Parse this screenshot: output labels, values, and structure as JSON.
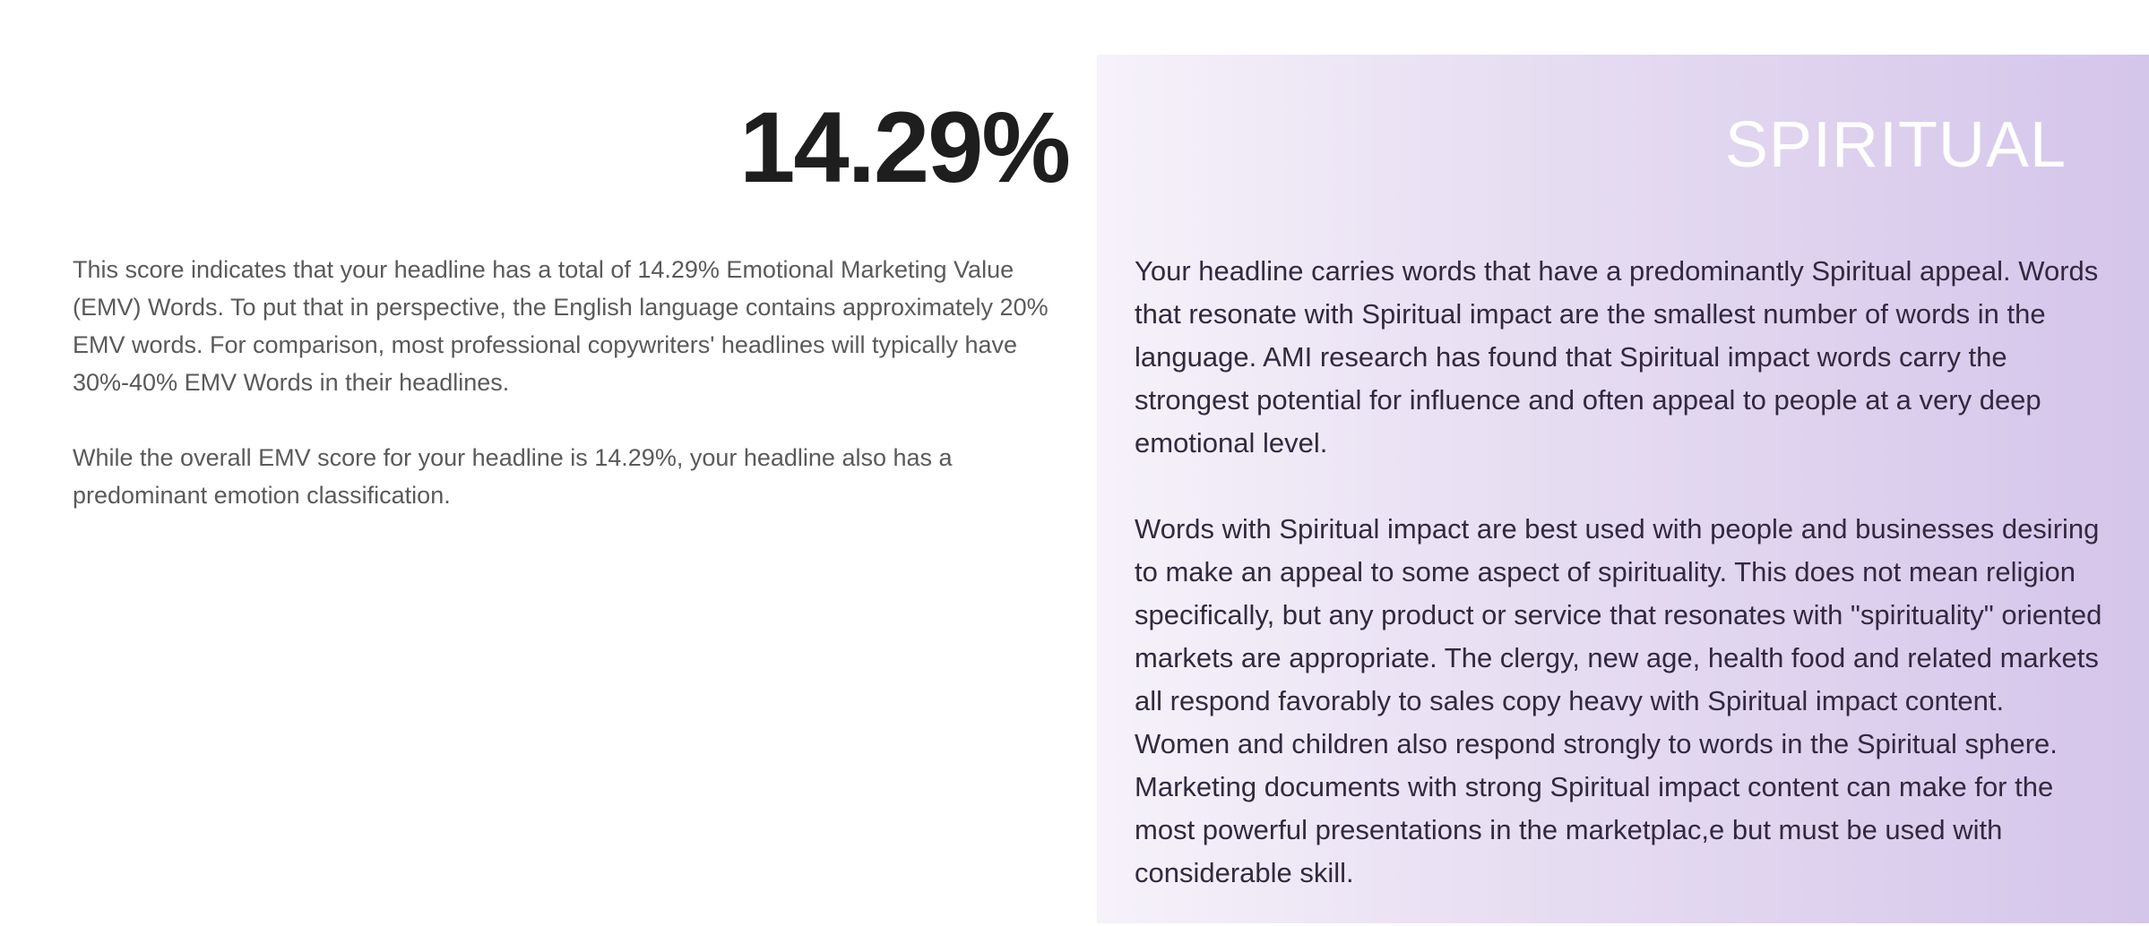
{
  "score": "14.29%",
  "left": {
    "paragraphs": [
      "This score indicates that your headline has a total of 14.29% Emotional Marketing Value (EMV) Words. To put that in perspective, the English language contains approximately 20% EMV words. For comparison, most professional copywriters' headlines will typically have 30%-40% EMV Words in their headlines.",
      "While the overall EMV score for your headline is 14.29%, your headline also has a predominant emotion classification."
    ]
  },
  "emotion": {
    "label": "SPIRITUAL",
    "paragraphs": [
      "Your headline carries words that have a predominantly Spiritual appeal. Words that resonate with Spiritual impact are the smallest number of words in the language. AMI research has found that Spiritual impact words carry the strongest potential for influence and often appeal to people at a very deep emotional level.",
      "Words with Spiritual impact are best used with people and businesses desiring to make an appeal to some aspect of spirituality. This does not mean religion specifically, but any product or service that resonates with \"spirituality\" oriented markets are appropriate. The clergy, new age, health food and related markets all respond favorably to sales copy heavy with Spiritual impact content. Women and children also respond strongly to words in the Spiritual sphere. Marketing documents with strong Spiritual impact content can make for the most powerful presentations in the marketplac,e but must be used with considerable skill."
    ]
  }
}
